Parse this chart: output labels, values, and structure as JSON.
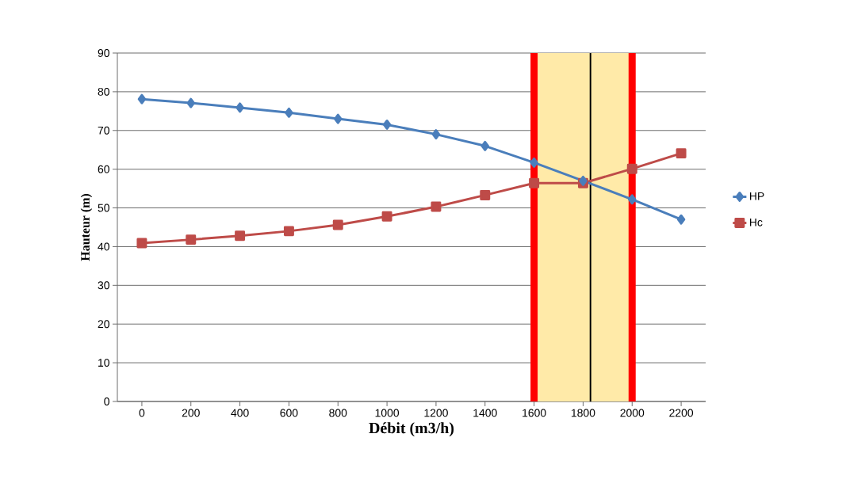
{
  "chart_data": {
    "type": "line",
    "xlabel": "Débit (m3/h)",
    "ylabel": "Hauteur (m)",
    "x": [
      0,
      200,
      400,
      600,
      800,
      1000,
      1200,
      1400,
      1600,
      1800,
      2000,
      2200
    ],
    "series": [
      {
        "name": "HP",
        "color": "#4a7ebb",
        "marker": "diamond",
        "values": [
          78.1,
          77.1,
          75.9,
          74.6,
          73,
          71.5,
          69,
          66,
          61.7,
          57,
          52.2,
          47
        ]
      },
      {
        "name": "Hc",
        "color": "#be4b48",
        "marker": "square",
        "values": [
          40.9,
          41.8,
          42.8,
          44,
          45.6,
          47.8,
          50.3,
          53.3,
          56.4,
          56.4,
          60.1,
          64.1
        ]
      }
    ],
    "xlim": [
      -100,
      2300
    ],
    "xticks": [
      0,
      200,
      400,
      600,
      800,
      1000,
      1200,
      1400,
      1600,
      1800,
      2000,
      2200
    ],
    "ylim": [
      0,
      90
    ],
    "yticks": [
      0,
      10,
      20,
      30,
      40,
      50,
      60,
      70,
      80,
      90
    ],
    "grid": "y",
    "legend": "right",
    "bands": [
      {
        "axis": "x",
        "from": 1600,
        "to": 2000,
        "color": "#ffeaa8"
      }
    ],
    "ref_lines": [
      {
        "axis": "x",
        "value": 1600,
        "color": "#ff0000"
      },
      {
        "axis": "x",
        "value": 2000,
        "color": "#ff0000"
      },
      {
        "axis": "x",
        "value": 1830,
        "color": "#000000",
        "line_style": "solid"
      }
    ]
  }
}
